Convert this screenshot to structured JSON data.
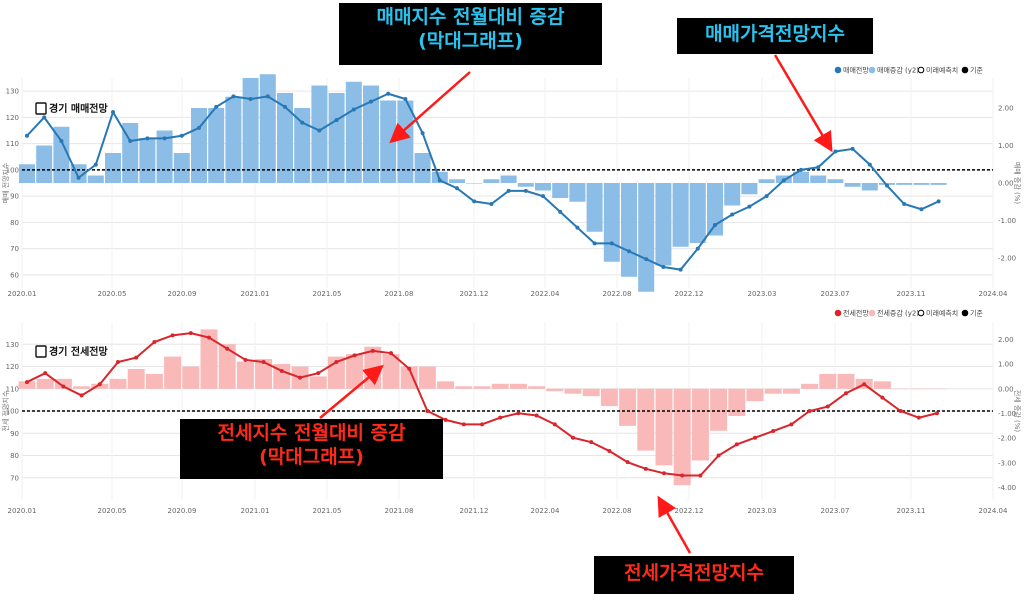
{
  "callouts": {
    "top_bar": [
      "매매지수 전월대비 증감",
      "(막대그래프)"
    ],
    "top_line": "매매가격전망지수",
    "bottom_bar": [
      "전세지수 전월대비 증감",
      "(막대그래프)"
    ],
    "bottom_line": "전세가격전망지수"
  },
  "colors": {
    "top_line": "#2878b5",
    "top_bar": "#8bbde6",
    "bottom_line": "#d9262c",
    "bottom_bar": "#f9b9b9",
    "callout_blue": "#29c3ee",
    "callout_red": "#ff2a1a",
    "arrow": "#ff1a1a"
  },
  "chart_data": [
    {
      "type": "bar+line",
      "title": "경기 매매전망",
      "ylabel": "매매 전망지수",
      "y2label": "매매 증감 (%)",
      "ylim": [
        55,
        135
      ],
      "y2lim": [
        -2.8,
        2.8
      ],
      "yticks": [
        60,
        70,
        80,
        90,
        100,
        110,
        120,
        130
      ],
      "y2ticks": [
        "2.00",
        "1.00",
        "0.00",
        "-1.00",
        "-2.00"
      ],
      "x_ticks": [
        "2020.01",
        "2020.05",
        "2020.09",
        "2021.01",
        "2021.05",
        "2021.08",
        "2021.12",
        "2022.04",
        "2022.08",
        "2022.12",
        "2023.03",
        "2023.07",
        "2023.11",
        "2024.04"
      ],
      "baseline": 100,
      "legend": [
        "매매전망",
        "매매증감 (y2)",
        "미래예측치",
        "기준"
      ],
      "series": [
        {
          "name": "매매전망",
          "kind": "line",
          "values": [
            113,
            120,
            111,
            97,
            102,
            122,
            111,
            112,
            112,
            113,
            116,
            124,
            128,
            127,
            128,
            124,
            118,
            115,
            119,
            123,
            126,
            129,
            127,
            114,
            96,
            93,
            88,
            87,
            92,
            92,
            90,
            84,
            78,
            72,
            72,
            69,
            66,
            63,
            62,
            70,
            79,
            83,
            86,
            90,
            96,
            100,
            101,
            107,
            108,
            102,
            94,
            87,
            85,
            88
          ]
        },
        {
          "name": "매매증감 (y2)",
          "kind": "bar",
          "values": [
            0.5,
            1.0,
            1.5,
            0.5,
            0.2,
            0.8,
            1.6,
            1.2,
            1.4,
            0.8,
            2.0,
            2.0,
            2.3,
            2.8,
            2.9,
            2.4,
            2.0,
            2.6,
            2.4,
            2.7,
            2.6,
            2.2,
            2.2,
            0.8,
            0.3,
            0.1,
            0.0,
            0.1,
            0.2,
            -0.1,
            -0.2,
            -0.4,
            -0.5,
            -1.3,
            -2.1,
            -2.5,
            -2.9,
            -2.2,
            -1.7,
            -1.6,
            -1.4,
            -0.6,
            -0.3,
            0.1,
            0.2,
            0.3,
            0.2,
            0.1,
            -0.1,
            -0.2,
            -0.05,
            -0.05,
            -0.05,
            -0.05
          ]
        }
      ]
    },
    {
      "type": "bar+line",
      "title": "경기 전세전망",
      "ylabel": "전세 전망지수",
      "y2label": "전세 증감 (%)",
      "ylim": [
        60,
        140
      ],
      "y2lim": [
        -4.5,
        2.7
      ],
      "yticks": [
        70,
        80,
        90,
        100,
        110,
        120,
        130
      ],
      "y2ticks": [
        "2.00",
        "1.00",
        "0.00",
        "-1.00",
        "-2.00",
        "-3.00",
        "-4.00"
      ],
      "x_ticks": [
        "2020.01",
        "2020.05",
        "2020.09",
        "2021.01",
        "2021.05",
        "2021.08",
        "2021.12",
        "2022.04",
        "2022.08",
        "2022.12",
        "2023.03",
        "2023.07",
        "2023.11",
        "2024.04"
      ],
      "baseline": 100,
      "legend": [
        "전세전망",
        "전세증감 (y2)",
        "미래예측치",
        "기준"
      ],
      "series": [
        {
          "name": "전세전망",
          "kind": "line",
          "values": [
            113,
            117,
            111,
            107,
            112,
            122,
            124,
            131,
            134,
            135,
            133,
            128,
            123,
            122,
            118,
            115,
            117,
            122,
            125,
            127,
            126,
            119,
            100,
            96,
            94,
            94,
            97,
            99,
            98,
            94,
            88,
            86,
            82,
            77,
            74,
            72,
            71,
            71,
            80,
            85,
            88,
            91,
            94,
            100,
            102,
            108,
            112,
            106,
            100,
            97,
            99
          ]
        },
        {
          "name": "전세증감 (y2)",
          "kind": "bar",
          "values": [
            0.3,
            0.4,
            0.4,
            0.1,
            0.2,
            0.4,
            0.8,
            0.6,
            1.3,
            0.9,
            2.4,
            1.8,
            1.1,
            1.2,
            1.0,
            0.9,
            0.5,
            1.3,
            1.4,
            1.7,
            1.4,
            0.9,
            0.9,
            0.3,
            0.1,
            0.1,
            0.2,
            0.2,
            0.1,
            -0.1,
            -0.2,
            -0.3,
            -0.7,
            -1.5,
            -2.5,
            -3.1,
            -3.9,
            -2.9,
            -1.7,
            -1.1,
            -0.5,
            -0.2,
            -0.2,
            0.2,
            0.6,
            0.6,
            0.4,
            0.3,
            0.0,
            0.0,
            0.0
          ]
        }
      ]
    }
  ]
}
